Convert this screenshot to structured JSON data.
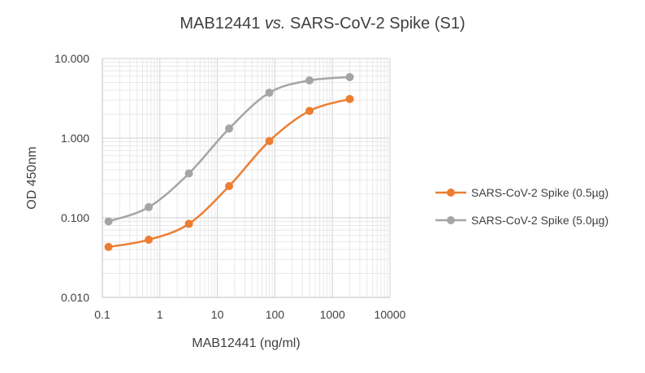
{
  "chart_data": {
    "type": "line",
    "title_parts": [
      "MAB12441 ",
      "vs.",
      " SARS-CoV-2 Spike (S1)"
    ],
    "xlabel": "MAB12441 (ng/ml)",
    "ylabel": "OD 450nm",
    "x_scale": "log",
    "y_scale": "log",
    "xlim": [
      0.1,
      10000
    ],
    "ylim": [
      0.01,
      10
    ],
    "x_tick_values": [
      0.1,
      1,
      10,
      100,
      1000,
      10000
    ],
    "x_tick_labels": [
      "0.1",
      "1",
      "10",
      "100",
      "1000",
      "10000"
    ],
    "y_tick_values": [
      0.01,
      0.1,
      1,
      10
    ],
    "y_tick_labels": [
      "0.010",
      "0.100",
      "1.000",
      "10.000"
    ],
    "grid": true,
    "legend_position": "right",
    "x": [
      0.128,
      0.64,
      3.2,
      16,
      80,
      400,
      2000
    ],
    "series": [
      {
        "name": "SARS-CoV-2 Spike (0.5µg)",
        "color": "#ED7D31",
        "values": [
          0.043,
          0.053,
          0.084,
          0.25,
          0.92,
          2.2,
          3.1
        ]
      },
      {
        "name": "SARS-CoV-2 Spike (5.0µg)",
        "color": "#A5A5A5",
        "values": [
          0.09,
          0.136,
          0.36,
          1.32,
          3.72,
          5.3,
          5.85
        ]
      }
    ]
  }
}
